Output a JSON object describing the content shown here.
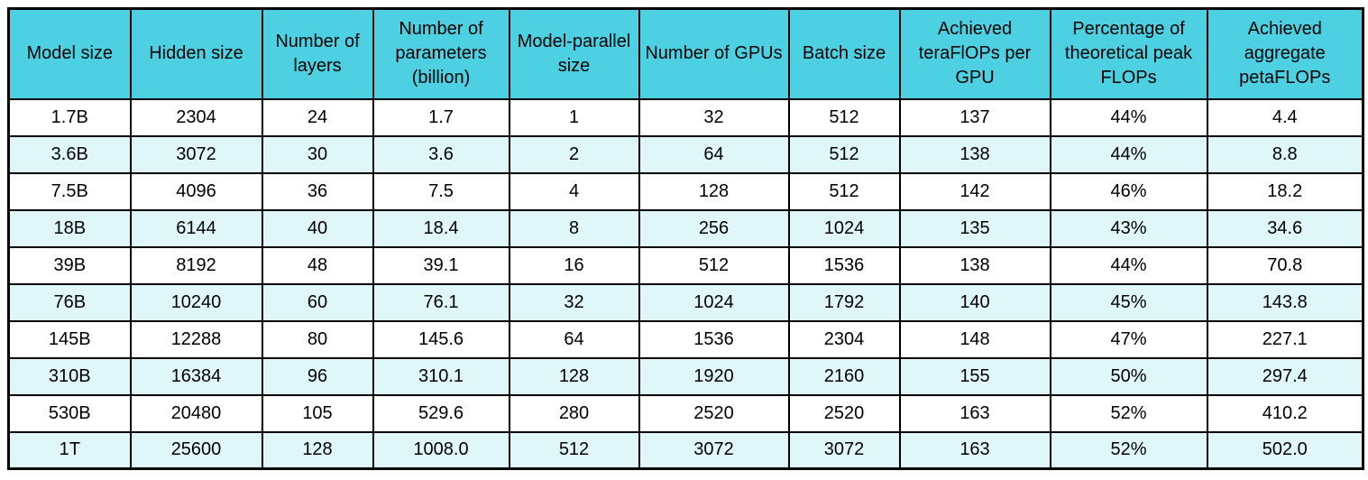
{
  "colors": {
    "header_bg": "#4DD0E1",
    "row_bg": "#FFFFFF",
    "row_alt_bg": "#E0F7FA",
    "border": "#000000",
    "text": "#000000"
  },
  "chart_data": {
    "type": "table",
    "title": "",
    "columns": [
      "Model size",
      "Hidden size",
      "Number of layers",
      "Number of parameters (billion)",
      "Model-parallel size",
      "Number of GPUs",
      "Batch size",
      "Achieved teraFlOPs per GPU",
      "Percentage of theoretical peak FLOPs",
      "Achieved aggregate petaFLOPs"
    ],
    "rows": [
      [
        "1.7B",
        "2304",
        "24",
        "1.7",
        "1",
        "32",
        "512",
        "137",
        "44%",
        "4.4"
      ],
      [
        "3.6B",
        "3072",
        "30",
        "3.6",
        "2",
        "64",
        "512",
        "138",
        "44%",
        "8.8"
      ],
      [
        "7.5B",
        "4096",
        "36",
        "7.5",
        "4",
        "128",
        "512",
        "142",
        "46%",
        "18.2"
      ],
      [
        "18B",
        "6144",
        "40",
        "18.4",
        "8",
        "256",
        "1024",
        "135",
        "43%",
        "34.6"
      ],
      [
        "39B",
        "8192",
        "48",
        "39.1",
        "16",
        "512",
        "1536",
        "138",
        "44%",
        "70.8"
      ],
      [
        "76B",
        "10240",
        "60",
        "76.1",
        "32",
        "1024",
        "1792",
        "140",
        "45%",
        "143.8"
      ],
      [
        "145B",
        "12288",
        "80",
        "145.6",
        "64",
        "1536",
        "2304",
        "148",
        "47%",
        "227.1"
      ],
      [
        "310B",
        "16384",
        "96",
        "310.1",
        "128",
        "1920",
        "2160",
        "155",
        "50%",
        "297.4"
      ],
      [
        "530B",
        "20480",
        "105",
        "529.6",
        "280",
        "2520",
        "2520",
        "163",
        "52%",
        "410.2"
      ],
      [
        "1T",
        "25600",
        "128",
        "1008.0",
        "512",
        "3072",
        "3072",
        "163",
        "52%",
        "502.0"
      ]
    ]
  }
}
